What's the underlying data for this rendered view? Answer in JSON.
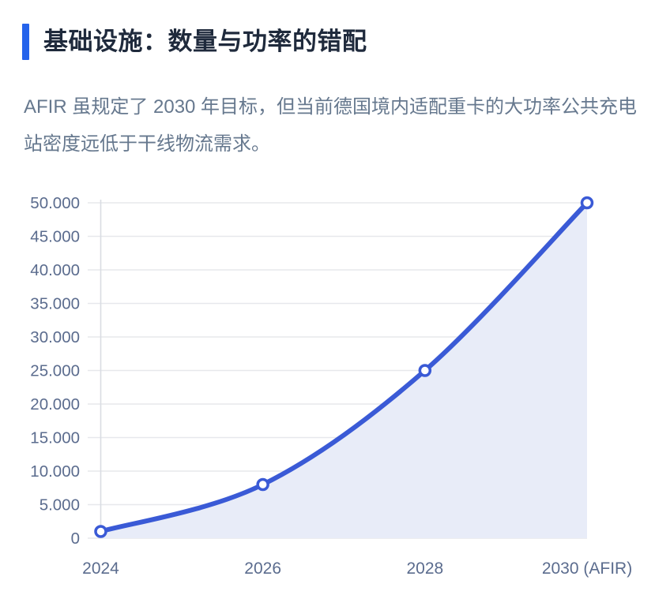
{
  "header": {
    "accent_color": "#2563eb",
    "title": "基础设施：数量与功率的错配",
    "subtitle": "AFIR 虽规定了 2030 年目标，但当前德国境内适配重卡的大功率公共充电站密度远低于干线物流需求。"
  },
  "chart_data": {
    "type": "area",
    "categories": [
      "2024",
      "2026",
      "2028",
      "2030 (AFIR)"
    ],
    "values": [
      1000,
      8000,
      25000,
      50000
    ],
    "title": "",
    "xlabel": "",
    "ylabel": "",
    "ylim": [
      0,
      50000
    ],
    "y_ticks": [
      0,
      5000,
      10000,
      15000,
      20000,
      25000,
      30000,
      35000,
      40000,
      45000,
      50000
    ],
    "y_tick_labels": [
      "0",
      "5.000",
      "10.000",
      "15.000",
      "20.000",
      "25.000",
      "30.000",
      "35.000",
      "40.000",
      "45.000",
      "50.000"
    ],
    "grid": true,
    "legend": false,
    "smooth": true,
    "marker": "open-circle",
    "colors": {
      "line": "#3a5ad6",
      "fill": "#e8ecf8",
      "marker_fill": "#ffffff",
      "grid": "#e7e8ec",
      "axis": "#d9dde3",
      "tick_label": "#5b6c8e"
    }
  }
}
